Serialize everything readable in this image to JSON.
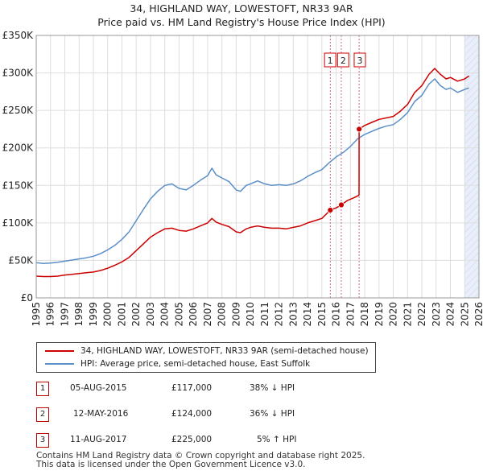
{
  "title": {
    "line1": "34, HIGHLAND WAY, LOWESTOFT, NR33 9AR",
    "line2": "Price paid vs. HM Land Registry's House Price Index (HPI)"
  },
  "legend": {
    "property": "34, HIGHLAND WAY, LOWESTOFT, NR33 9AR (semi-detached house)",
    "hpi": "HPI: Average price, semi-detached house, East Suffolk"
  },
  "sales": [
    {
      "num": "1",
      "date": "05-AUG-2015",
      "price": "£117,000",
      "relation": "38% ↓ HPI"
    },
    {
      "num": "2",
      "date": "12-MAY-2016",
      "price": "£124,000",
      "relation": "36% ↓ HPI"
    },
    {
      "num": "3",
      "date": "11-AUG-2017",
      "price": "£225,000",
      "relation": "5% ↑ HPI"
    }
  ],
  "footer": {
    "line1": "Contains HM Land Registry data © Crown copyright and database right 2025.",
    "line2": "This data is licensed under the Open Government Licence v3.0."
  },
  "colors": {
    "property": "#cc0000",
    "hpi": "#5b8fc9",
    "marker_line": "#cc6688",
    "future_band": "#e8eefa",
    "grid": "#dddddd"
  },
  "chart_data": {
    "type": "line",
    "xlim": [
      1995,
      2026
    ],
    "ylim": [
      0,
      350000
    ],
    "x_ticks": [
      "1995",
      "1996",
      "1997",
      "1998",
      "1999",
      "2000",
      "2001",
      "2002",
      "2003",
      "2004",
      "2005",
      "2006",
      "2007",
      "2008",
      "2009",
      "2010",
      "2011",
      "2012",
      "2013",
      "2014",
      "2015",
      "2016",
      "2017",
      "2018",
      "2019",
      "2020",
      "2021",
      "2022",
      "2023",
      "2024",
      "2025",
      "2026"
    ],
    "y_ticks": [
      {
        "value": 0,
        "label": "£0"
      },
      {
        "value": 50000,
        "label": "£50K"
      },
      {
        "value": 100000,
        "label": "£100K"
      },
      {
        "value": 150000,
        "label": "£150K"
      },
      {
        "value": 200000,
        "label": "£200K"
      },
      {
        "value": 250000,
        "label": "£250K"
      },
      {
        "value": 300000,
        "label": "£300K"
      },
      {
        "value": 350000,
        "label": "£350K"
      }
    ],
    "future_start": 2025.0,
    "series": [
      {
        "name": "HPI: Average price, semi-detached house, East Suffolk",
        "x": [
          1995,
          1995.5,
          1996,
          1996.5,
          1997,
          1997.5,
          1998,
          1998.5,
          1999,
          1999.5,
          2000,
          2000.5,
          2001,
          2001.5,
          2002,
          2002.5,
          2003,
          2003.5,
          2004,
          2004.5,
          2005,
          2005.5,
          2006,
          2006.5,
          2007,
          2007.3,
          2007.6,
          2008,
          2008.5,
          2009,
          2009.3,
          2009.7,
          2010,
          2010.5,
          2011,
          2011.5,
          2012,
          2012.5,
          2013,
          2013.5,
          2014,
          2014.5,
          2015,
          2015.5,
          2016,
          2016.5,
          2017,
          2017.5,
          2018,
          2018.5,
          2019,
          2019.5,
          2020,
          2020.5,
          2021,
          2021.5,
          2022,
          2022.5,
          2022.9,
          2023.3,
          2023.7,
          2024,
          2024.5,
          2025,
          2025.3
        ],
        "y": [
          47000,
          46000,
          46500,
          47500,
          49000,
          50500,
          52000,
          53500,
          55500,
          59000,
          64000,
          70000,
          78000,
          88000,
          103000,
          118000,
          132000,
          142000,
          150000,
          152000,
          146000,
          144000,
          150000,
          157000,
          163000,
          173000,
          164000,
          160000,
          155000,
          144000,
          142000,
          150000,
          152000,
          156000,
          152000,
          150000,
          151000,
          150000,
          152000,
          156000,
          162000,
          167000,
          171000,
          180000,
          188000,
          194000,
          202000,
          212000,
          218000,
          222000,
          226000,
          229000,
          231000,
          238000,
          247000,
          262000,
          270000,
          285000,
          292000,
          283000,
          278000,
          280000,
          274000,
          278000,
          280000
        ]
      },
      {
        "name": "34, HIGHLAND WAY, LOWESTOFT, NR33 9AR (semi-detached house)",
        "x": [
          1995,
          1995.5,
          1996,
          1996.5,
          1997,
          1997.5,
          1998,
          1998.5,
          1999,
          1999.5,
          2000,
          2000.5,
          2001,
          2001.5,
          2002,
          2002.5,
          2003,
          2003.5,
          2004,
          2004.5,
          2005,
          2005.5,
          2006,
          2006.5,
          2007,
          2007.3,
          2007.6,
          2008,
          2008.5,
          2009,
          2009.3,
          2009.7,
          2010,
          2010.5,
          2011,
          2011.5,
          2012,
          2012.5,
          2013,
          2013.5,
          2014,
          2014.5,
          2015,
          2015.59,
          2016,
          2016.36,
          2016.8,
          2017.3,
          2017.6,
          2017.61,
          2018,
          2018.5,
          2019,
          2019.5,
          2020,
          2020.5,
          2021,
          2021.5,
          2022,
          2022.5,
          2022.9,
          2023.3,
          2023.7,
          2024,
          2024.5,
          2025,
          2025.3
        ],
        "y": [
          29000,
          28500,
          28500,
          29000,
          30500,
          31500,
          32500,
          33500,
          34500,
          36500,
          39500,
          43500,
          48000,
          54000,
          63000,
          72000,
          81000,
          87000,
          92000,
          93000,
          90000,
          89000,
          92000,
          96000,
          100000,
          106000,
          101000,
          98000,
          95000,
          88000,
          87000,
          92000,
          94000,
          96000,
          94000,
          93000,
          93000,
          92000,
          94000,
          96000,
          100000,
          103000,
          106000,
          117000,
          120000,
          124000,
          130000,
          134000,
          137000,
          225000,
          230000,
          234000,
          238000,
          240000,
          242000,
          249000,
          258000,
          274000,
          283000,
          298000,
          306000,
          298000,
          292000,
          294000,
          289000,
          292000,
          296000
        ]
      }
    ],
    "sales": [
      {
        "label": "1",
        "x": 2015.59,
        "y": 117000
      },
      {
        "label": "2",
        "x": 2016.36,
        "y": 124000
      },
      {
        "label": "3",
        "x": 2017.61,
        "y": 225000
      }
    ]
  }
}
